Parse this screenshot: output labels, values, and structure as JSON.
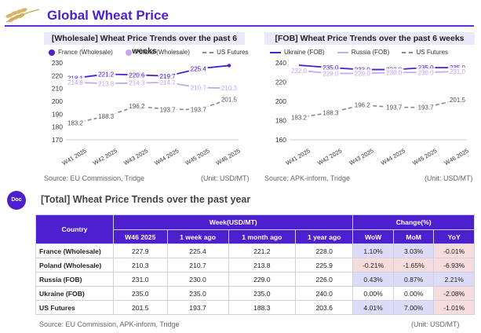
{
  "page": {
    "title": "Global Wheat Price",
    "section_badge": "Doc",
    "section_title": "[Total] Wheat Price Trends over the past year"
  },
  "chart_data": [
    {
      "type": "line",
      "title": "[Wholesale] Wheat Price Trends over the past 6 weeks",
      "categories": [
        "W41 2025",
        "W42 2025",
        "W43 2025",
        "W44 2025",
        "W45 2025",
        "W46 2025"
      ],
      "ylim": [
        170,
        230
      ],
      "yticks": [
        170,
        180,
        190,
        200,
        210,
        220,
        230
      ],
      "grid": false,
      "legend_position": "top",
      "series": [
        {
          "name": "France (Wholesale)",
          "values": [
            218.1,
            221.2,
            220.6,
            219.7,
            225.4,
            227.9
          ],
          "labels": [
            "218.1",
            "221.2",
            "220.6",
            "219.7",
            "225.4",
            null
          ],
          "color": "#4c1fcf",
          "style": "solid"
        },
        {
          "name": "Poland (Wholesale)",
          "values": [
            214.8,
            213.8,
            214.3,
            214.7,
            210.7,
            210.3
          ],
          "labels": [
            "214.8",
            "213.8",
            "214.3",
            "214.7",
            "210.7",
            "210.3"
          ],
          "color": "#c4a8f0",
          "style": "solid"
        },
        {
          "name": "US Futures",
          "values": [
            183.2,
            188.3,
            196.2,
            193.7,
            193.7,
            201.5
          ],
          "labels": [
            "183.2",
            "188.3",
            "196.2",
            "193.7",
            "193.7",
            "201.5"
          ],
          "color": "#8a8a8a",
          "style": "dashed"
        }
      ],
      "source": "Source: EU Commission, Tridge",
      "unit": "(Unit: USD/MT)"
    },
    {
      "type": "line",
      "title": "[FOB] Wheat Price Trends over the past 6 weeks",
      "categories": [
        "W41 2025",
        "W42 2025",
        "W43 2025",
        "W44 2025",
        "W45 2025",
        "W46 2025"
      ],
      "ylim": [
        160,
        240
      ],
      "yticks": [
        160,
        180,
        200,
        220,
        240
      ],
      "grid": false,
      "legend_position": "top",
      "series": [
        {
          "name": "Ukraine (FOB)",
          "values": [
            237.5,
            235.0,
            233.0,
            233.0,
            235.0,
            235.0
          ],
          "labels": [
            null,
            "235.0",
            "233.0",
            "233.0",
            "235.0",
            "235.0"
          ],
          "color": "#4c1fcf",
          "style": "solid"
        },
        {
          "name": "Russia (FOB)",
          "values": [
            232.0,
            229.0,
            229.0,
            230.0,
            230.0,
            231.0
          ],
          "labels": [
            "232.0",
            "229.0",
            "229.0",
            "230.0",
            "230.0",
            "231.0"
          ],
          "color": "#c4a8f0",
          "style": "solid"
        },
        {
          "name": "US Futures",
          "values": [
            183.2,
            188.3,
            196.2,
            193.7,
            193.7,
            201.5
          ],
          "labels": [
            "183.2",
            "188.3",
            "196.2",
            "193.7",
            "193.7",
            "201.5"
          ],
          "color": "#8a8a8a",
          "style": "dashed"
        }
      ],
      "source": "Source: APK-inform, Tridge",
      "unit": "(Unit: USD/MT)"
    },
    {
      "type": "table",
      "group_headers": {
        "week": "Week(USD/MT)",
        "change": "Change(%)"
      },
      "columns": [
        "Country",
        "W46 2025",
        "1 week ago",
        "1 month ago",
        "1 year ago",
        "WoW",
        "MoM",
        "YoY"
      ],
      "rows": [
        {
          "country": "France (Wholesale)",
          "cells": [
            "227.9",
            "225.4",
            "221.2",
            "228.0"
          ],
          "changes": [
            {
              "v": "1.10%",
              "s": "pos"
            },
            {
              "v": "3.03%",
              "s": "pos"
            },
            {
              "v": "-0.01%",
              "s": "neg"
            }
          ]
        },
        {
          "country": "Poland (Wholesale)",
          "cells": [
            "210.3",
            "210.7",
            "213.8",
            "225.9"
          ],
          "changes": [
            {
              "v": "-0.21%",
              "s": "neg"
            },
            {
              "v": "-1.65%",
              "s": "neg"
            },
            {
              "v": "-6.93%",
              "s": "neg"
            }
          ]
        },
        {
          "country": "Russia (FOB)",
          "cells": [
            "231.0",
            "230.0",
            "229.0",
            "226.0"
          ],
          "changes": [
            {
              "v": "0.43%",
              "s": "pos"
            },
            {
              "v": "0.87%",
              "s": "pos"
            },
            {
              "v": "2.21%",
              "s": "pos"
            }
          ]
        },
        {
          "country": "Ukraine (FOB)",
          "cells": [
            "235.0",
            "235.0",
            "235.0",
            "240.0"
          ],
          "changes": [
            {
              "v": "0.00%",
              "s": "neu"
            },
            {
              "v": "0.00%",
              "s": "neu"
            },
            {
              "v": "-2.08%",
              "s": "neg"
            }
          ]
        },
        {
          "country": "US Futures",
          "cells": [
            "201.5",
            "193.7",
            "188.3",
            "203.6"
          ],
          "changes": [
            {
              "v": "4.01%",
              "s": "pos"
            },
            {
              "v": "7.00%",
              "s": "pos"
            },
            {
              "v": "-1.01%",
              "s": "neg"
            }
          ]
        }
      ],
      "source": "Source: EU Commission, APK-inform, Tridge",
      "unit": "(Unit: USD/MT)"
    }
  ]
}
